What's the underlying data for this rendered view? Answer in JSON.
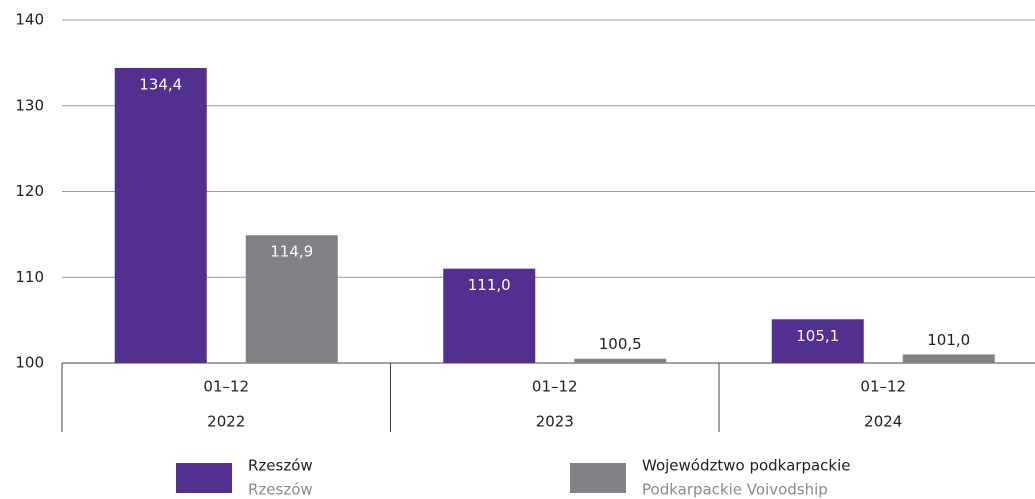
{
  "chart_data": {
    "type": "bar",
    "categories": [
      [
        "01–12",
        "2022"
      ],
      [
        "01–12",
        "2023"
      ],
      [
        "01–12",
        "2024"
      ]
    ],
    "series": [
      {
        "name": "Rzeszów",
        "name_en": "Rzeszów",
        "color": "#523090",
        "values": [
          134.4,
          111.0,
          105.1
        ],
        "value_labels": [
          "134,4",
          "111,0",
          "105,1"
        ]
      },
      {
        "name": "Województwo podkarpackie",
        "name_en": "Podkarpackie Voivodship",
        "color": "#818285",
        "values": [
          114.9,
          100.5,
          101.0
        ],
        "value_labels": [
          "114,9",
          "100,5",
          "101,0"
        ]
      }
    ],
    "ylim": [
      100,
      140
    ],
    "yticks": [
      100,
      110,
      120,
      130,
      140
    ],
    "grid": true
  }
}
